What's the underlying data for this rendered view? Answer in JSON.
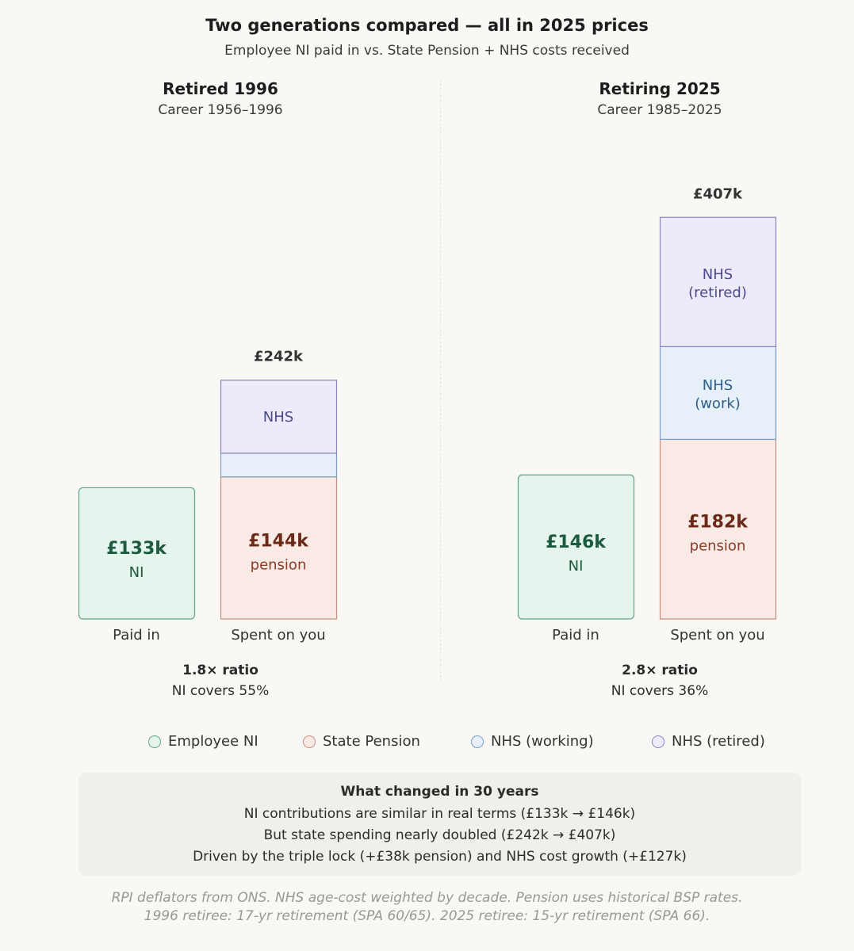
{
  "title": "Two generations compared — all in 2025 prices",
  "subtitle": "Employee NI paid in vs. State Pension + NHS costs received",
  "colors": {
    "ni_fill": "#e5f4ec",
    "ni_stroke": "#5fa585",
    "ni_text": "#1c5a41",
    "pension_fill": "#f9eae6",
    "pension_stroke": "#c48e7d",
    "pension_text": "#8a3c26",
    "pension_value": "#6b2a18",
    "nhs_work_fill": "#e7f0f9",
    "nhs_work_stroke": "#7a9cc2",
    "nhs_work_text": "#2d5f8d",
    "nhs_ret_fill": "#edebfa",
    "nhs_ret_stroke": "#8985bd",
    "nhs_ret_text": "#4c4a8f"
  },
  "chart_data": [
    {
      "type": "bar",
      "title": "Retired 1996",
      "subtitle": "Career 1956–1996",
      "categories": [
        "Paid in",
        "Spent on you"
      ],
      "series": [
        {
          "name": "Employee NI",
          "values": [
            133,
            0
          ]
        },
        {
          "name": "State Pension",
          "values": [
            0,
            144
          ]
        },
        {
          "name": "NHS (working)",
          "values": [
            0,
            24
          ]
        },
        {
          "name": "NHS (retired)",
          "values": [
            0,
            74
          ]
        }
      ],
      "units": "£k",
      "paid_label": {
        "value": "£133k",
        "sub": "NI"
      },
      "pension_label": {
        "value": "£144k",
        "sub": "pension"
      },
      "nhs_work_label": {
        "line1": "",
        "line2": ""
      },
      "nhs_ret_label": {
        "line1": "NHS",
        "line2": ""
      },
      "total_label": "£242k",
      "ratio": "1.8× ratio",
      "coverage": "NI covers 55%"
    },
    {
      "type": "bar",
      "title": "Retiring 2025",
      "subtitle": "Career 1985–2025",
      "categories": [
        "Paid in",
        "Spent on you"
      ],
      "series": [
        {
          "name": "Employee NI",
          "values": [
            146,
            0
          ]
        },
        {
          "name": "State Pension",
          "values": [
            0,
            182
          ]
        },
        {
          "name": "NHS (working)",
          "values": [
            0,
            94
          ]
        },
        {
          "name": "NHS (retired)",
          "values": [
            0,
            131
          ]
        }
      ],
      "units": "£k",
      "paid_label": {
        "value": "£146k",
        "sub": "NI"
      },
      "pension_label": {
        "value": "£182k",
        "sub": "pension"
      },
      "nhs_work_label": {
        "line1": "NHS",
        "line2": "(work)"
      },
      "nhs_ret_label": {
        "line1": "NHS",
        "line2": "(retired)"
      },
      "total_label": "£407k",
      "ratio": "2.8× ratio",
      "coverage": "NI covers 36%"
    }
  ],
  "legend": [
    {
      "label": "Employee NI",
      "key": "ni"
    },
    {
      "label": "State Pension",
      "key": "pension"
    },
    {
      "label": "NHS (working)",
      "key": "nhs_work"
    },
    {
      "label": "NHS (retired)",
      "key": "nhs_ret"
    }
  ],
  "changed": {
    "heading": "What changed in 30 years",
    "lines": [
      "NI contributions are similar in real terms (£133k → £146k)",
      "But state spending nearly doubled (£242k → £407k)",
      "Driven by the triple lock (+£38k pension) and NHS cost growth (+£127k)"
    ]
  },
  "footnote": {
    "line1": "RPI deflators from ONS. NHS age-cost weighted by decade. Pension uses historical BSP rates.",
    "line2": "1996 retiree: 17-yr retirement (SPA 60/65). 2025 retiree: 15-yr retirement (SPA 66)."
  }
}
